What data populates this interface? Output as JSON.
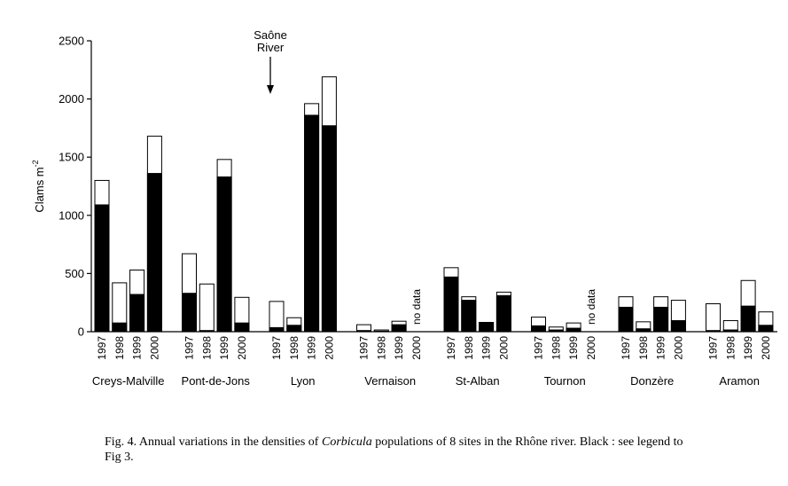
{
  "chart_data": {
    "type": "bar",
    "stacked": true,
    "ylabel": "Clams m",
    "ylabel_sup": "-2",
    "ylim": [
      0,
      2500
    ],
    "yticks": [
      0,
      500,
      1000,
      1500,
      2000,
      2500
    ],
    "years": [
      "1997",
      "1998",
      "1999",
      "2000"
    ],
    "annotation": {
      "line1": "Saône",
      "line2": "River",
      "arrow": "down"
    },
    "no_data_label": "no data",
    "sites": [
      {
        "name": "Creys-Malville",
        "black": [
          1090,
          75,
          320,
          1360
        ],
        "total": [
          1300,
          420,
          530,
          1680
        ]
      },
      {
        "name": "Pont-de-Jons",
        "black": [
          330,
          10,
          1330,
          75
        ],
        "total": [
          670,
          410,
          1480,
          295
        ]
      },
      {
        "name": "Lyon",
        "black": [
          35,
          55,
          1860,
          1770
        ],
        "total": [
          260,
          120,
          1960,
          2190
        ]
      },
      {
        "name": "Vernaison",
        "black": [
          10,
          5,
          60,
          null
        ],
        "total": [
          60,
          15,
          90,
          null
        ]
      },
      {
        "name": "St-Alban",
        "black": [
          470,
          270,
          80,
          310
        ],
        "total": [
          550,
          300,
          80,
          340
        ]
      },
      {
        "name": "Tournon",
        "black": [
          50,
          15,
          30,
          null
        ],
        "total": [
          125,
          40,
          75,
          null
        ]
      },
      {
        "name": "Donzère",
        "black": [
          210,
          25,
          210,
          95
        ],
        "total": [
          300,
          85,
          300,
          270
        ]
      },
      {
        "name": "Aramon",
        "black": [
          10,
          15,
          220,
          55
        ],
        "total": [
          240,
          95,
          440,
          170
        ]
      }
    ],
    "colors": {
      "black": "#000000",
      "white": "#ffffff",
      "outline": "#000000"
    }
  },
  "caption": {
    "prefix": "Fig. 4. Annual variations in the densities of ",
    "italic": "Corbicula",
    "suffix": " populations of 8 sites in the Rhône river. Black : see legend to",
    "line2": "Fig 3."
  }
}
